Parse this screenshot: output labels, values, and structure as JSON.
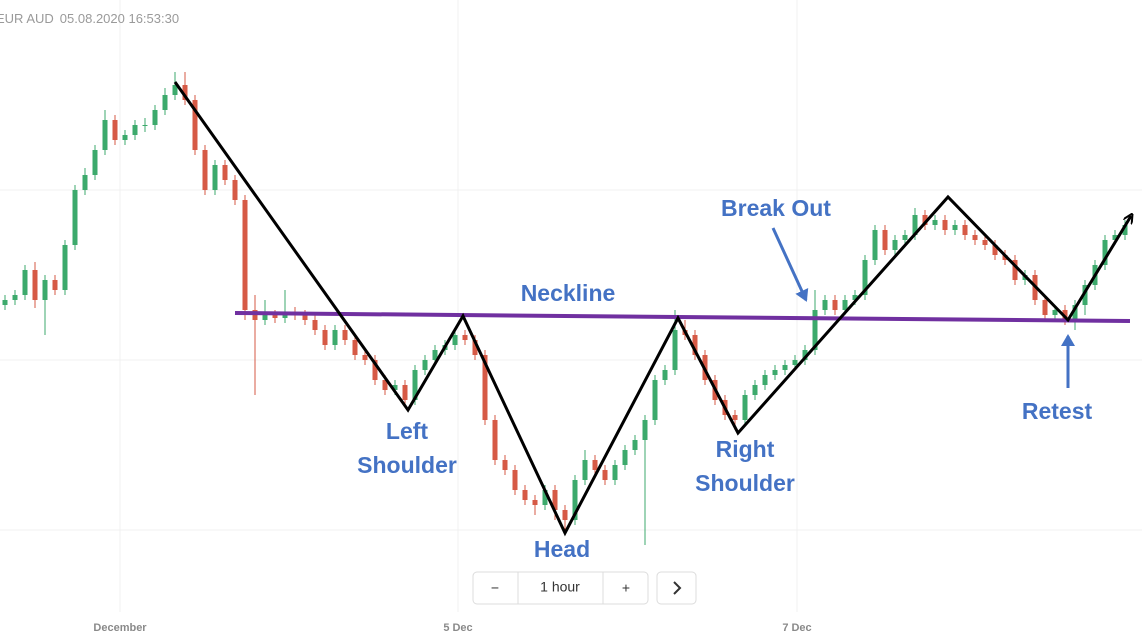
{
  "header": {
    "symbol": "EUR AUD",
    "timestamp": "05.08.2020 16:53:30"
  },
  "chart_data": {
    "type": "candlestick",
    "up_color": "#3caa6c",
    "down_color": "#d65a46",
    "xlim": [
      0,
      112
    ],
    "ylim": [
      0,
      600
    ],
    "xticks": [
      {
        "value": 11.5,
        "label": "December"
      },
      {
        "value": 45.3,
        "label": "5 Dec"
      },
      {
        "value": 79.2,
        "label": "7 Dec"
      }
    ],
    "open": [
      295,
      300,
      305,
      330,
      300,
      320,
      310,
      355,
      410,
      425,
      450,
      480,
      460,
      465,
      475,
      475,
      490,
      505,
      515,
      500,
      450,
      410,
      435,
      420,
      400,
      290,
      280,
      285,
      282,
      288,
      285,
      280,
      270,
      255,
      270,
      260,
      245,
      240,
      220,
      210,
      215,
      200,
      230,
      240,
      250,
      255,
      265,
      260,
      245,
      180,
      140,
      130,
      110,
      100,
      95,
      110,
      90,
      80,
      120,
      140,
      130,
      120,
      135,
      150,
      160,
      180,
      220,
      230,
      270,
      265,
      245,
      220,
      200,
      185,
      180,
      205,
      215,
      225,
      230,
      235,
      240,
      250,
      290,
      300,
      290,
      300,
      305,
      340,
      370,
      350,
      360,
      365,
      385,
      375,
      380,
      370,
      375,
      365,
      360,
      355,
      345,
      340,
      320,
      325,
      300,
      285,
      290,
      280,
      295,
      315,
      335,
      360,
      365
    ],
    "high": [
      305,
      310,
      335,
      338,
      325,
      325,
      360,
      415,
      432,
      455,
      490,
      485,
      470,
      480,
      482,
      495,
      512,
      528,
      528,
      505,
      455,
      440,
      440,
      425,
      405,
      305,
      300,
      290,
      310,
      293,
      290,
      285,
      275,
      275,
      275,
      265,
      250,
      245,
      225,
      220,
      220,
      235,
      245,
      255,
      260,
      270,
      270,
      265,
      250,
      185,
      145,
      135,
      115,
      105,
      115,
      115,
      95,
      125,
      150,
      145,
      135,
      140,
      155,
      165,
      185,
      225,
      235,
      290,
      280,
      270,
      250,
      225,
      205,
      190,
      210,
      220,
      230,
      235,
      240,
      245,
      255,
      310,
      305,
      305,
      305,
      310,
      345,
      375,
      375,
      365,
      370,
      392,
      390,
      385,
      385,
      380,
      380,
      370,
      365,
      360,
      350,
      345,
      330,
      330,
      305,
      295,
      295,
      300,
      320,
      340,
      365,
      370,
      380
    ],
    "low": [
      290,
      295,
      300,
      292,
      265,
      305,
      305,
      350,
      405,
      420,
      445,
      455,
      455,
      460,
      468,
      470,
      485,
      500,
      495,
      445,
      405,
      405,
      415,
      395,
      280,
      205,
      275,
      277,
      277,
      280,
      275,
      265,
      250,
      250,
      255,
      240,
      235,
      215,
      205,
      205,
      195,
      195,
      225,
      235,
      245,
      250,
      255,
      240,
      175,
      135,
      125,
      105,
      95,
      85,
      90,
      80,
      70,
      75,
      115,
      125,
      115,
      115,
      130,
      145,
      55,
      175,
      215,
      225,
      260,
      240,
      215,
      195,
      180,
      170,
      175,
      200,
      210,
      220,
      225,
      230,
      235,
      245,
      285,
      285,
      285,
      295,
      300,
      335,
      345,
      345,
      355,
      360,
      370,
      370,
      365,
      365,
      360,
      355,
      350,
      340,
      335,
      315,
      315,
      295,
      280,
      280,
      275,
      270,
      285,
      310,
      330,
      355,
      360
    ],
    "close": [
      300,
      305,
      330,
      300,
      320,
      310,
      355,
      410,
      425,
      450,
      480,
      460,
      465,
      475,
      475,
      490,
      505,
      515,
      500,
      450,
      410,
      435,
      420,
      400,
      290,
      280,
      285,
      282,
      288,
      285,
      280,
      270,
      255,
      270,
      260,
      245,
      240,
      220,
      210,
      215,
      200,
      230,
      240,
      250,
      255,
      265,
      260,
      245,
      180,
      140,
      130,
      110,
      100,
      95,
      110,
      90,
      80,
      120,
      140,
      130,
      120,
      135,
      150,
      160,
      180,
      220,
      230,
      270,
      265,
      245,
      220,
      200,
      185,
      180,
      205,
      215,
      225,
      230,
      235,
      240,
      250,
      290,
      300,
      290,
      300,
      305,
      340,
      370,
      350,
      360,
      365,
      385,
      375,
      380,
      370,
      375,
      365,
      360,
      355,
      345,
      340,
      320,
      325,
      300,
      285,
      290,
      280,
      295,
      315,
      335,
      360,
      365,
      375
    ]
  },
  "annotations": {
    "break_out": "Break Out",
    "neckline": "Neckline",
    "left_shoulder": [
      "Left",
      "Shoulder"
    ],
    "head": "Head",
    "right_shoulder": [
      "Right",
      "Shoulder"
    ],
    "retest": "Retest"
  },
  "toolbar": {
    "minus": "−",
    "interval": "1 hour",
    "plus": "+"
  }
}
